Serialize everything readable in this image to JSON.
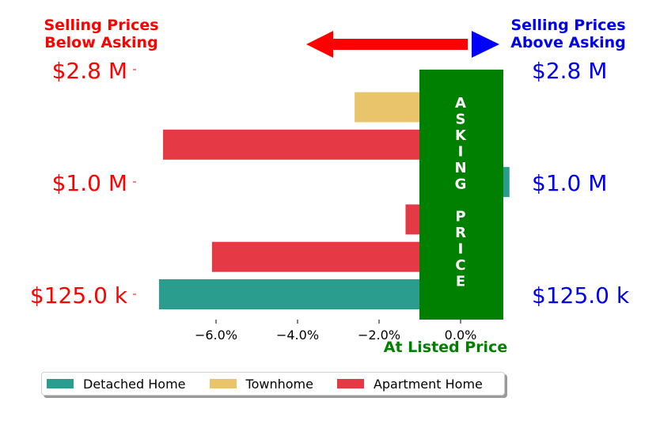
{
  "headers": {
    "left_line1": "Selling Prices",
    "left_line2": "Below Asking",
    "right_line1": "Selling Prices",
    "right_line2": "Above Asking"
  },
  "asking_box_text": [
    "A",
    "S",
    "K",
    "I",
    "N",
    "G",
    "",
    "P",
    "R",
    "I",
    "C",
    "E"
  ],
  "at_listed_label": "At Listed Price",
  "colors": {
    "below": "#ff0000",
    "above": "#0000ee",
    "asking_box": "#008000",
    "arrow_left": "#ff0000",
    "arrow_right": "#0000ff"
  },
  "chart_data": {
    "type": "bar",
    "orientation": "horizontal",
    "title": "",
    "xlabel": "",
    "ylabel": "",
    "xlim": [
      -7.8,
      1.3
    ],
    "xticks": [
      -6.0,
      -4.0,
      -2.0,
      0.0
    ],
    "xtick_labels": [
      "−6.0%",
      "−4.0%",
      "−2.0%",
      "0.0%"
    ],
    "ytick_labels": [
      "$125.0 k",
      "$1.0 M",
      "$2.8 M"
    ],
    "bars": [
      {
        "series": "Detached Home",
        "value": -7.4
      },
      {
        "series": "Apartment Home",
        "value": -6.1
      },
      {
        "series": "Apartment Home",
        "value": -1.35
      },
      {
        "series": "Detached Home",
        "value": 1.2
      },
      {
        "series": "Apartment Home",
        "value": -7.3
      },
      {
        "series": "Townhome",
        "value": -2.6
      }
    ],
    "series": [
      {
        "name": "Detached Home",
        "color": "#2a9d8f"
      },
      {
        "name": "Townhome",
        "color": "#e9c46a"
      },
      {
        "name": "Apartment Home",
        "color": "#e63946"
      }
    ],
    "legend_placement": "bottom",
    "grid": false
  }
}
